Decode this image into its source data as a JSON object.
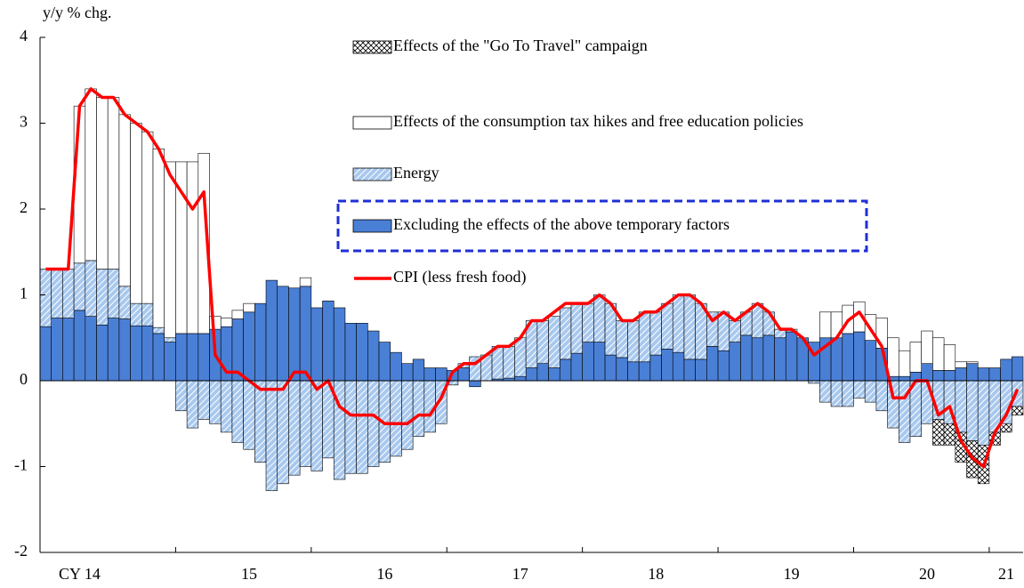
{
  "chart_data": {
    "type": "bar",
    "stacked": true,
    "ylabel": "y/y % chg.",
    "ylim": [
      -2,
      4
    ],
    "yticks": [
      -2,
      -1,
      0,
      1,
      2,
      3,
      4
    ],
    "grid": false,
    "categories": [
      null,
      null,
      null,
      "CY 14",
      null,
      null,
      null,
      null,
      null,
      null,
      null,
      null,
      null,
      null,
      null,
      null,
      null,
      null,
      "15",
      null,
      null,
      null,
      null,
      null,
      null,
      null,
      null,
      null,
      null,
      null,
      "16",
      null,
      null,
      null,
      null,
      null,
      null,
      null,
      null,
      null,
      null,
      null,
      "17",
      null,
      null,
      null,
      null,
      null,
      null,
      null,
      null,
      null,
      null,
      null,
      "18",
      null,
      null,
      null,
      null,
      null,
      null,
      null,
      null,
      null,
      null,
      null,
      "19",
      null,
      null,
      null,
      null,
      null,
      null,
      null,
      null,
      null,
      null,
      null,
      "20",
      null,
      null,
      null,
      null,
      null,
      null,
      "21",
      null
    ],
    "series": [
      {
        "name": "Excluding the effects of the above temporary factors",
        "color": "#4a7fd6",
        "values": [
          0.63,
          0.73,
          0.73,
          0.82,
          0.75,
          0.65,
          0.73,
          0.72,
          0.64,
          0.64,
          0.55,
          0.45,
          0.55,
          0.55,
          0.55,
          0.6,
          0.63,
          0.72,
          0.8,
          0.9,
          1.17,
          1.1,
          1.08,
          1.1,
          0.85,
          0.93,
          0.85,
          0.67,
          0.67,
          0.58,
          0.45,
          0.33,
          0.2,
          0.25,
          0.15,
          0.15,
          0.12,
          0.15,
          -0.07,
          0,
          0.02,
          0.03,
          0.05,
          0.15,
          0.2,
          0.15,
          0.25,
          0.32,
          0.45,
          0.45,
          0.3,
          0.27,
          0.22,
          0.22,
          0.3,
          0.37,
          0.33,
          0.25,
          0.25,
          0.4,
          0.35,
          0.45,
          0.53,
          0.5,
          0.53,
          0.5,
          0.57,
          0.5,
          0.45,
          0.5,
          0.5,
          0.55,
          0.57,
          0.47,
          0.38,
          0.05,
          0.05,
          0.1,
          0.2,
          0.12,
          0.12,
          0.15,
          0.2,
          0.15,
          0.15,
          0.25,
          0.28
        ]
      },
      {
        "name": "Energy",
        "color": "#a8c8ee",
        "hatch": "diagonal",
        "values": [
          0.67,
          0.57,
          0.57,
          0.55,
          0.65,
          0.65,
          0.57,
          0.38,
          0.26,
          0.26,
          0.07,
          0.05,
          -0.35,
          -0.55,
          -0.45,
          -0.5,
          -0.6,
          -0.72,
          -0.8,
          -0.95,
          -1.28,
          -1.2,
          -1.1,
          -1.0,
          -1.05,
          -0.9,
          -1.15,
          -1.08,
          -1.08,
          -1.0,
          -0.95,
          -0.88,
          -0.8,
          -0.65,
          -0.6,
          -0.5,
          -0.05,
          0.05,
          0.28,
          0.3,
          0.38,
          0.37,
          0.45,
          0.55,
          0.5,
          0.6,
          0.6,
          0.58,
          0.45,
          0.55,
          0.6,
          0.43,
          0.48,
          0.58,
          0.5,
          0.53,
          0.67,
          0.75,
          0.65,
          0.4,
          0.45,
          0.25,
          0.27,
          0.4,
          0.27,
          0.1,
          0.03,
          0,
          -0.03,
          -0.25,
          -0.3,
          -0.3,
          -0.2,
          -0.25,
          -0.35,
          -0.55,
          -0.72,
          -0.65,
          -0.5,
          -0.45,
          -0.5,
          -0.6,
          -0.7,
          -0.75,
          -0.6,
          -0.5,
          -0.3
        ]
      },
      {
        "name": "Effects of the consumption tax hikes and free education policies",
        "color": "#ffffff",
        "values": [
          0,
          0,
          0,
          1.83,
          2.0,
          2.0,
          2.0,
          2.0,
          2.1,
          2.0,
          2.08,
          2.05,
          2.0,
          2.0,
          2.1,
          0.15,
          0.1,
          0.1,
          0.1,
          0,
          0,
          0,
          0,
          0.1,
          0,
          0,
          0,
          0,
          0,
          0,
          0,
          0,
          0,
          0,
          0,
          0,
          0,
          0,
          0,
          0,
          0,
          0,
          0,
          0,
          0,
          0,
          0,
          0,
          0,
          0,
          0,
          0,
          0,
          0,
          0,
          0,
          0,
          0,
          0,
          0,
          0,
          0,
          0,
          0,
          0,
          0,
          0,
          0,
          0,
          0.3,
          0.3,
          0.33,
          0.35,
          0.3,
          0.35,
          0.45,
          0.3,
          0.35,
          0.38,
          0.38,
          0.3,
          0.07,
          0.02,
          0,
          0,
          0,
          0
        ]
      },
      {
        "name": "Effects of the \"Go To Travel\" campaign",
        "color": "#000000",
        "hatch": "crosshatch",
        "values": [
          0,
          0,
          0,
          0,
          0,
          0,
          0,
          0,
          0,
          0,
          0,
          0,
          0,
          0,
          0,
          0,
          0,
          0,
          0,
          0,
          0,
          0,
          0,
          0,
          0,
          0,
          0,
          0,
          0,
          0,
          0,
          0,
          0,
          0,
          0,
          0,
          0,
          0,
          0,
          0,
          0,
          0,
          0,
          0,
          0,
          0,
          0,
          0,
          0,
          0,
          0,
          0,
          0,
          0,
          0,
          0,
          0,
          0,
          0,
          0,
          0,
          0,
          0,
          0,
          0,
          0,
          0,
          0,
          0,
          0,
          0,
          0,
          0,
          0,
          0,
          0,
          0,
          0,
          0,
          -0.3,
          -0.25,
          -0.35,
          -0.43,
          -0.45,
          -0.15,
          -0.1,
          -0.1
        ]
      },
      {
        "name": "CPI (less fresh food)",
        "color": "#ff0000",
        "type": "line",
        "values": [
          1.3,
          1.3,
          1.3,
          3.2,
          3.4,
          3.3,
          3.3,
          3.1,
          3.0,
          2.9,
          2.7,
          2.4,
          2.2,
          2.0,
          2.2,
          0.3,
          0.1,
          0.1,
          0,
          -0.1,
          -0.1,
          -0.1,
          0.1,
          0.1,
          -0.1,
          0,
          -0.3,
          -0.4,
          -0.4,
          -0.4,
          -0.5,
          -0.5,
          -0.5,
          -0.4,
          -0.4,
          -0.2,
          0.1,
          0.2,
          0.2,
          0.3,
          0.4,
          0.4,
          0.5,
          0.7,
          0.7,
          0.8,
          0.9,
          0.9,
          0.9,
          1.0,
          0.9,
          0.7,
          0.7,
          0.8,
          0.8,
          0.9,
          1.0,
          1.0,
          0.9,
          0.7,
          0.8,
          0.7,
          0.8,
          0.9,
          0.8,
          0.6,
          0.6,
          0.5,
          0.3,
          0.4,
          0.5,
          0.7,
          0.8,
          0.6,
          0.4,
          -0.2,
          -0.2,
          0,
          0,
          -0.4,
          -0.3,
          -0.7,
          -0.9,
          -1.0,
          -0.6,
          -0.4,
          -0.1
        ]
      }
    ]
  }
}
